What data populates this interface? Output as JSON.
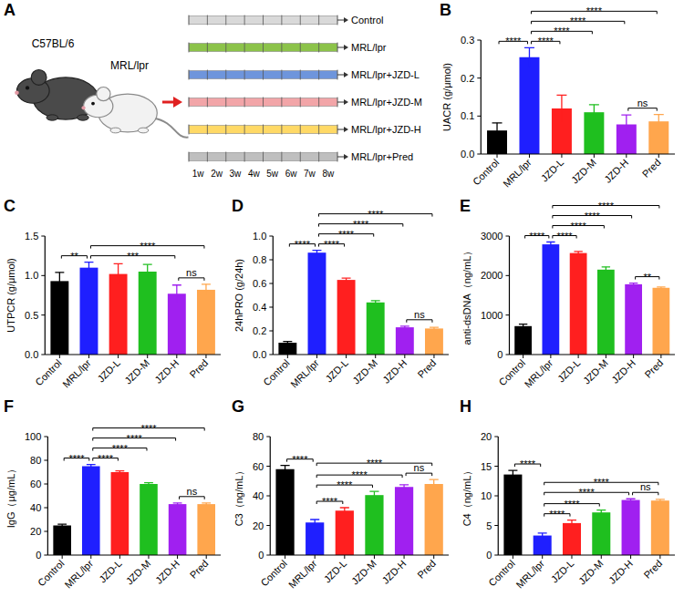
{
  "diagram": {
    "panel": "A",
    "mice": [
      "C57BL/6",
      "MRL/lpr"
    ],
    "groups": [
      {
        "label": "Control",
        "color": "#d9d9d9"
      },
      {
        "label": "MRL/lpr",
        "color": "#8cc34a"
      },
      {
        "label": "MRL/lpr+JZD-L",
        "color": "#6e95dc"
      },
      {
        "label": "MRL/lpr+JZD-M",
        "color": "#f2a5a8"
      },
      {
        "label": "MRL/lpr+JZD-H",
        "color": "#ffd966"
      },
      {
        "label": "MRL/lpr+Pred",
        "color": "#bfbfbf"
      }
    ],
    "weeks": [
      "1w",
      "2w",
      "3w",
      "4w",
      "5w",
      "6w",
      "7w",
      "8w"
    ]
  },
  "chart_data": [
    {
      "type": "bar",
      "panel": "B",
      "y_label": "UACR (g/μmol)",
      "categories": [
        "Control",
        "MRL/lpr",
        "JZD-L",
        "JZD-M",
        "JZD-H",
        "Pred"
      ],
      "values": [
        0.062,
        0.255,
        0.12,
        0.11,
        0.078,
        0.086
      ],
      "errors": [
        0.02,
        0.025,
        0.035,
        0.02,
        0.025,
        0.018
      ],
      "colors": [
        "#000000",
        "#1f1fff",
        "#ff1f1f",
        "#1fbf1f",
        "#a020f0",
        "#ffa64d"
      ],
      "ylim": [
        0,
        0.3
      ],
      "yticks": [
        {
          "value": 0,
          "label": "0.0"
        },
        0.1,
        0.2,
        0.3
      ],
      "annotations": [
        {
          "pair": [
            "JZD-H",
            "Pred"
          ],
          "label": "ns"
        },
        {
          "pair": [
            "Control",
            "MRL/lpr"
          ],
          "label": "****"
        },
        {
          "pair": [
            "MRL/lpr",
            "JZD-L"
          ],
          "label": "****"
        },
        {
          "pair": [
            "MRL/lpr",
            "JZD-M"
          ],
          "label": "****"
        },
        {
          "pair": [
            "MRL/lpr",
            "JZD-H"
          ],
          "label": "****"
        },
        {
          "pair": [
            "MRL/lpr",
            "Pred"
          ],
          "label": "****"
        }
      ]
    },
    {
      "type": "bar",
      "panel": "C",
      "y_label": "UTPCR (g/μmol)",
      "categories": [
        "Control",
        "MRL/lpr",
        "JZD-L",
        "JZD-M",
        "JZD-H",
        "Pred"
      ],
      "values": [
        0.93,
        1.1,
        1.02,
        1.05,
        0.77,
        0.82
      ],
      "errors": [
        0.11,
        0.07,
        0.13,
        0.09,
        0.11,
        0.07
      ],
      "colors": [
        "#000000",
        "#1f1fff",
        "#ff1f1f",
        "#1fbf1f",
        "#a020f0",
        "#ffa64d"
      ],
      "ylim": [
        0,
        1.5
      ],
      "yticks": [
        {
          "value": 0,
          "label": "0.0"
        },
        0.5,
        {
          "value": 1,
          "label": "1.0"
        },
        1.5
      ],
      "annotations": [
        {
          "pair": [
            "JZD-H",
            "Pred"
          ],
          "label": "ns"
        },
        {
          "pair": [
            "Control",
            "MRL/lpr"
          ],
          "label": "**"
        },
        {
          "pair": [
            "MRL/lpr",
            "JZD-H"
          ],
          "label": "***"
        },
        {
          "pair": [
            "MRL/lpr",
            "Pred"
          ],
          "label": "****"
        }
      ]
    },
    {
      "type": "bar",
      "panel": "D",
      "y_label": "24hPRO (g/24h)",
      "categories": [
        "Control",
        "MRL/lpr",
        "JZD-L",
        "JZD-M",
        "JZD-H",
        "Pred"
      ],
      "values": [
        0.1,
        0.86,
        0.63,
        0.44,
        0.23,
        0.22
      ],
      "errors": [
        0.01,
        0.02,
        0.015,
        0.015,
        0.01,
        0.01
      ],
      "colors": [
        "#000000",
        "#1f1fff",
        "#ff1f1f",
        "#1fbf1f",
        "#a020f0",
        "#ffa64d"
      ],
      "ylim": [
        0,
        1
      ],
      "yticks": [
        {
          "value": 0,
          "label": "0.0"
        },
        0.2,
        0.4,
        0.6,
        0.8,
        {
          "value": 1,
          "label": "1.0"
        }
      ],
      "annotations": [
        {
          "pair": [
            "JZD-H",
            "Pred"
          ],
          "label": "ns"
        },
        {
          "pair": [
            "Control",
            "MRL/lpr"
          ],
          "label": "****"
        },
        {
          "pair": [
            "MRL/lpr",
            "JZD-L"
          ],
          "label": "****"
        },
        {
          "pair": [
            "MRL/lpr",
            "JZD-M"
          ],
          "label": "****"
        },
        {
          "pair": [
            "MRL/lpr",
            "JZD-H"
          ],
          "label": "****"
        },
        {
          "pair": [
            "MRL/lpr",
            "Pred"
          ],
          "label": "****"
        }
      ]
    },
    {
      "type": "bar",
      "panel": "E",
      "y_label": "anti-dsDNA（ng/mL）",
      "categories": [
        "Control",
        "MRL/lpr",
        "JZD-L",
        "JZD-M",
        "JZD-H",
        "Pred"
      ],
      "values": [
        720,
        2790,
        2570,
        2150,
        1780,
        1690
      ],
      "errors": [
        50,
        60,
        40,
        70,
        30,
        20
      ],
      "colors": [
        "#000000",
        "#1f1fff",
        "#ff1f1f",
        "#1fbf1f",
        "#a020f0",
        "#ffa64d"
      ],
      "ylim": [
        0,
        3000
      ],
      "yticks": [
        0,
        1000,
        2000,
        3000
      ],
      "annotations": [
        {
          "pair": [
            "JZD-H",
            "Pred"
          ],
          "label": "**"
        },
        {
          "pair": [
            "Control",
            "MRL/lpr"
          ],
          "label": "****"
        },
        {
          "pair": [
            "MRL/lpr",
            "JZD-L"
          ],
          "label": "****"
        },
        {
          "pair": [
            "MRL/lpr",
            "JZD-M"
          ],
          "label": "****"
        },
        {
          "pair": [
            "MRL/lpr",
            "JZD-H"
          ],
          "label": "****"
        },
        {
          "pair": [
            "MRL/lpr",
            "Pred"
          ],
          "label": "****"
        }
      ]
    },
    {
      "type": "bar",
      "panel": "F",
      "y_label": "IgG（μg/mL）",
      "categories": [
        "Control",
        "MRL/lpr",
        "JZD-L",
        "JZD-M",
        "JZD-H",
        "Pred"
      ],
      "values": [
        25,
        75,
        70,
        60,
        43,
        43
      ],
      "errors": [
        1,
        1.5,
        1,
        1,
        1,
        1
      ],
      "colors": [
        "#000000",
        "#1f1fff",
        "#ff1f1f",
        "#1fbf1f",
        "#a020f0",
        "#ffa64d"
      ],
      "ylim": [
        0,
        100
      ],
      "yticks": [
        0,
        20,
        40,
        60,
        80,
        100
      ],
      "annotations": [
        {
          "pair": [
            "JZD-H",
            "Pred"
          ],
          "label": "ns"
        },
        {
          "pair": [
            "Control",
            "MRL/lpr"
          ],
          "label": "****"
        },
        {
          "pair": [
            "MRL/lpr",
            "JZD-L"
          ],
          "label": "****"
        },
        {
          "pair": [
            "MRL/lpr",
            "JZD-M"
          ],
          "label": "****"
        },
        {
          "pair": [
            "MRL/lpr",
            "JZD-H"
          ],
          "label": "****"
        },
        {
          "pair": [
            "MRL/lpr",
            "Pred"
          ],
          "label": "****"
        }
      ]
    },
    {
      "type": "bar",
      "panel": "G",
      "y_label": "C3（ng/mL）",
      "categories": [
        "Control",
        "MRL/lpr",
        "JZD-L",
        "JZD-M",
        "JZD-H",
        "Pred"
      ],
      "values": [
        58,
        22,
        30,
        40.5,
        46,
        48
      ],
      "errors": [
        2.5,
        2,
        2,
        2.5,
        1.5,
        3
      ],
      "colors": [
        "#000000",
        "#1f1fff",
        "#ff1f1f",
        "#1fbf1f",
        "#a020f0",
        "#ffa64d"
      ],
      "ylim": [
        0,
        80
      ],
      "yticks": [
        0,
        20,
        40,
        60,
        80
      ],
      "annotations": [
        {
          "pair": [
            "JZD-H",
            "Pred"
          ],
          "label": "ns"
        },
        {
          "pair": [
            "Control",
            "MRL/lpr"
          ],
          "label": "****"
        },
        {
          "pair": [
            "MRL/lpr",
            "JZD-L"
          ],
          "label": "****"
        },
        {
          "pair": [
            "MRL/lpr",
            "JZD-M"
          ],
          "label": "****"
        },
        {
          "pair": [
            "MRL/lpr",
            "JZD-H"
          ],
          "label": "****"
        },
        {
          "pair": [
            "MRL/lpr",
            "Pred"
          ],
          "label": "****"
        }
      ]
    },
    {
      "type": "bar",
      "panel": "H",
      "y_label": "C4（ng/mL）",
      "categories": [
        "Control",
        "MRL/lpr",
        "JZD-L",
        "JZD-M",
        "JZD-H",
        "Pred"
      ],
      "values": [
        13.6,
        3.3,
        5.4,
        7.2,
        9.3,
        9.2
      ],
      "errors": [
        0.7,
        0.4,
        0.5,
        0.4,
        0.2,
        0.2
      ],
      "colors": [
        "#000000",
        "#1f1fff",
        "#ff1f1f",
        "#1fbf1f",
        "#a020f0",
        "#ffa64d"
      ],
      "ylim": [
        0,
        20
      ],
      "yticks": [
        0,
        5,
        10,
        15,
        20
      ],
      "annotations": [
        {
          "pair": [
            "JZD-H",
            "Pred"
          ],
          "label": "ns"
        },
        {
          "pair": [
            "Control",
            "MRL/lpr"
          ],
          "label": "****"
        },
        {
          "pair": [
            "MRL/lpr",
            "JZD-L"
          ],
          "label": "****"
        },
        {
          "pair": [
            "MRL/lpr",
            "JZD-M"
          ],
          "label": "****"
        },
        {
          "pair": [
            "MRL/lpr",
            "JZD-H"
          ],
          "label": "****"
        },
        {
          "pair": [
            "MRL/lpr",
            "Pred"
          ],
          "label": "****"
        }
      ]
    }
  ]
}
